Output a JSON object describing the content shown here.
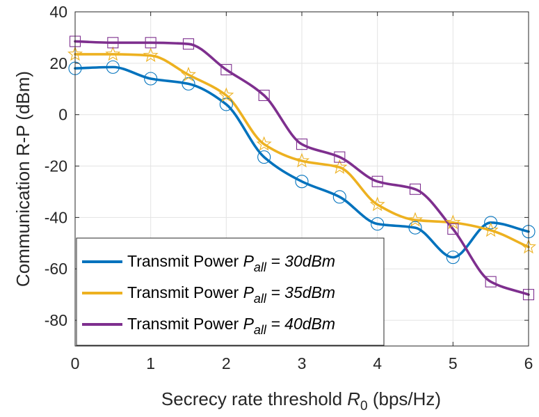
{
  "chart_data": {
    "type": "line",
    "title": "",
    "xlabel": {
      "prefix": "Secrecy rate threshold ",
      "var": "R",
      "sub": "0",
      "suffix": " (bps/Hz)"
    },
    "ylabel": "Communication R-P (dBm)",
    "xlim": [
      0,
      6
    ],
    "ylim": [
      -90,
      40
    ],
    "xticks": [
      0,
      1,
      2,
      3,
      4,
      5,
      6
    ],
    "yticks": [
      -80,
      -60,
      -40,
      -20,
      0,
      20,
      40
    ],
    "xtick_labels": [
      "0",
      "1",
      "2",
      "3",
      "4",
      "5",
      "6"
    ],
    "ytick_labels": [
      "-80",
      "-60",
      "-40",
      "-20",
      "0",
      "20",
      "40"
    ],
    "grid": true,
    "legend_position": "bottom-left",
    "x": [
      0,
      0.5,
      1,
      1.5,
      2,
      2.5,
      3,
      3.5,
      4,
      4.5,
      5,
      5.5,
      6
    ],
    "series": [
      {
        "name": "Transmit Power P_all = 30dBm",
        "legend": {
          "prefix": "Transmit Power ",
          "var": "P",
          "sub": "all",
          "suffix": " = 30dBm"
        },
        "color": "#0072BD",
        "marker": "circle",
        "values": [
          18,
          18.5,
          14,
          12,
          4,
          -16.5,
          -26,
          -32,
          -42.5,
          -44,
          -55.5,
          -42,
          -45.5
        ]
      },
      {
        "name": "Transmit Power P_all = 35dBm",
        "legend": {
          "prefix": "Transmit Power ",
          "var": "P",
          "sub": "all",
          "suffix": " = 35dBm"
        },
        "color": "#EDB120",
        "marker": "star",
        "values": [
          23.5,
          23.5,
          23,
          15.5,
          7.5,
          -11.5,
          -18,
          -20.5,
          -35,
          -41,
          -42,
          -45,
          -51.5
        ]
      },
      {
        "name": "Transmit Power P_all = 40dBm",
        "legend": {
          "prefix": "Transmit Power ",
          "var": "P",
          "sub": "all",
          "suffix": " = 40dBm"
        },
        "color": "#7E2F8E",
        "marker": "square",
        "values": [
          28.5,
          28,
          28,
          27.5,
          17.5,
          7.5,
          -11.5,
          -16.5,
          -26,
          -29,
          -44.5,
          -65,
          -70
        ]
      }
    ]
  }
}
